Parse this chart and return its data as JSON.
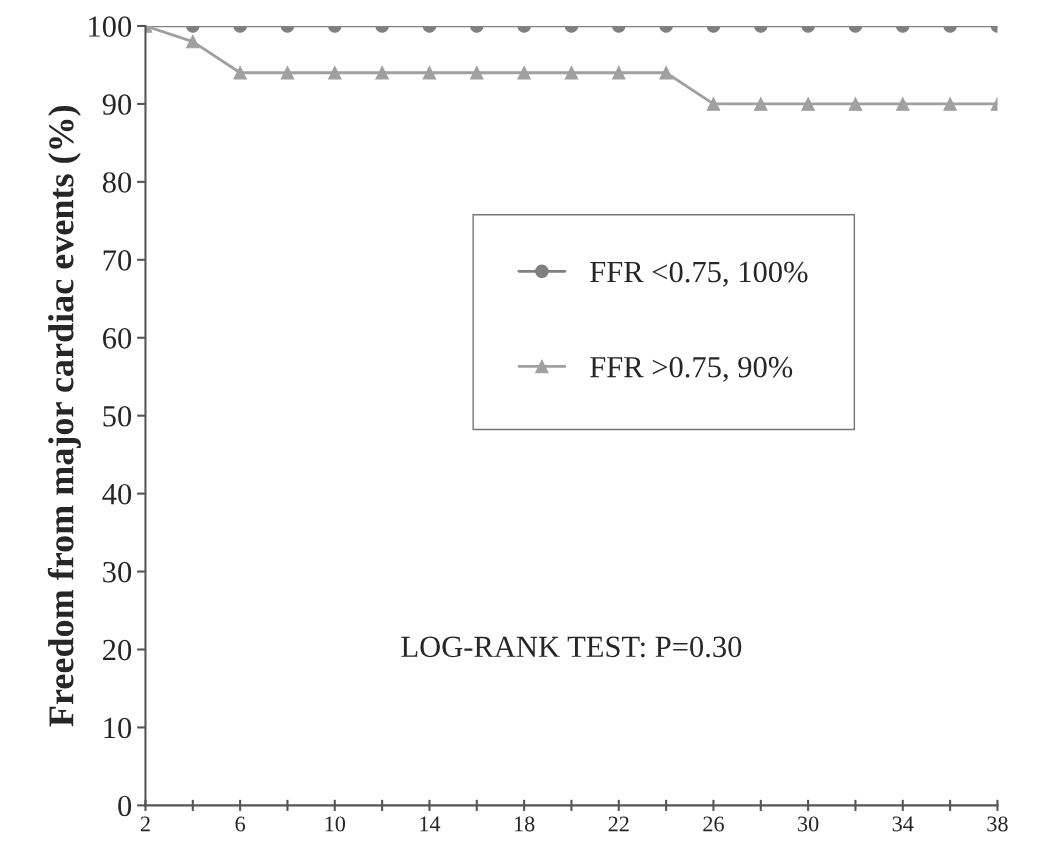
{
  "chart_data": {
    "type": "line",
    "ylabel": "Freedom from major cardiac events (%)",
    "x": [
      2,
      4,
      6,
      8,
      10,
      12,
      14,
      16,
      18,
      20,
      22,
      24,
      26,
      28,
      30,
      32,
      34,
      36,
      38
    ],
    "series": [
      {
        "name": "FFR <0.75, 100%",
        "color": "#808080",
        "marker": "circle",
        "values": [
          100,
          100,
          100,
          100,
          100,
          100,
          100,
          100,
          100,
          100,
          100,
          100,
          100,
          100,
          100,
          100,
          100,
          100,
          100
        ]
      },
      {
        "name": "FFR >0.75, 90%",
        "color": "#a0a0a0",
        "marker": "triangle",
        "values": [
          100,
          98,
          94,
          94,
          94,
          94,
          94,
          94,
          94,
          94,
          94,
          94,
          90,
          90,
          90,
          90,
          90,
          90,
          90
        ]
      }
    ],
    "xlim": [
      2,
      38
    ],
    "xticks": [
      2,
      {
        "value": 4,
        "label": null
      },
      6,
      {
        "value": 8,
        "label": null
      },
      10,
      {
        "value": 12,
        "label": null
      },
      14,
      {
        "value": 16,
        "label": null
      },
      18,
      {
        "value": 20,
        "label": null
      },
      22,
      {
        "value": 24,
        "label": null
      },
      26,
      {
        "value": 28,
        "label": null
      },
      30,
      {
        "value": 32,
        "label": null
      },
      34,
      {
        "value": 36,
        "label": null
      },
      38
    ],
    "ylim": [
      0,
      100
    ],
    "yticks": [
      0,
      10,
      20,
      30,
      40,
      50,
      60,
      70,
      80,
      90,
      100
    ],
    "annotations": [
      "LOG-RANK TEST: P=0.30"
    ],
    "legend": "right",
    "grid": false,
    "line_style": "solid"
  }
}
